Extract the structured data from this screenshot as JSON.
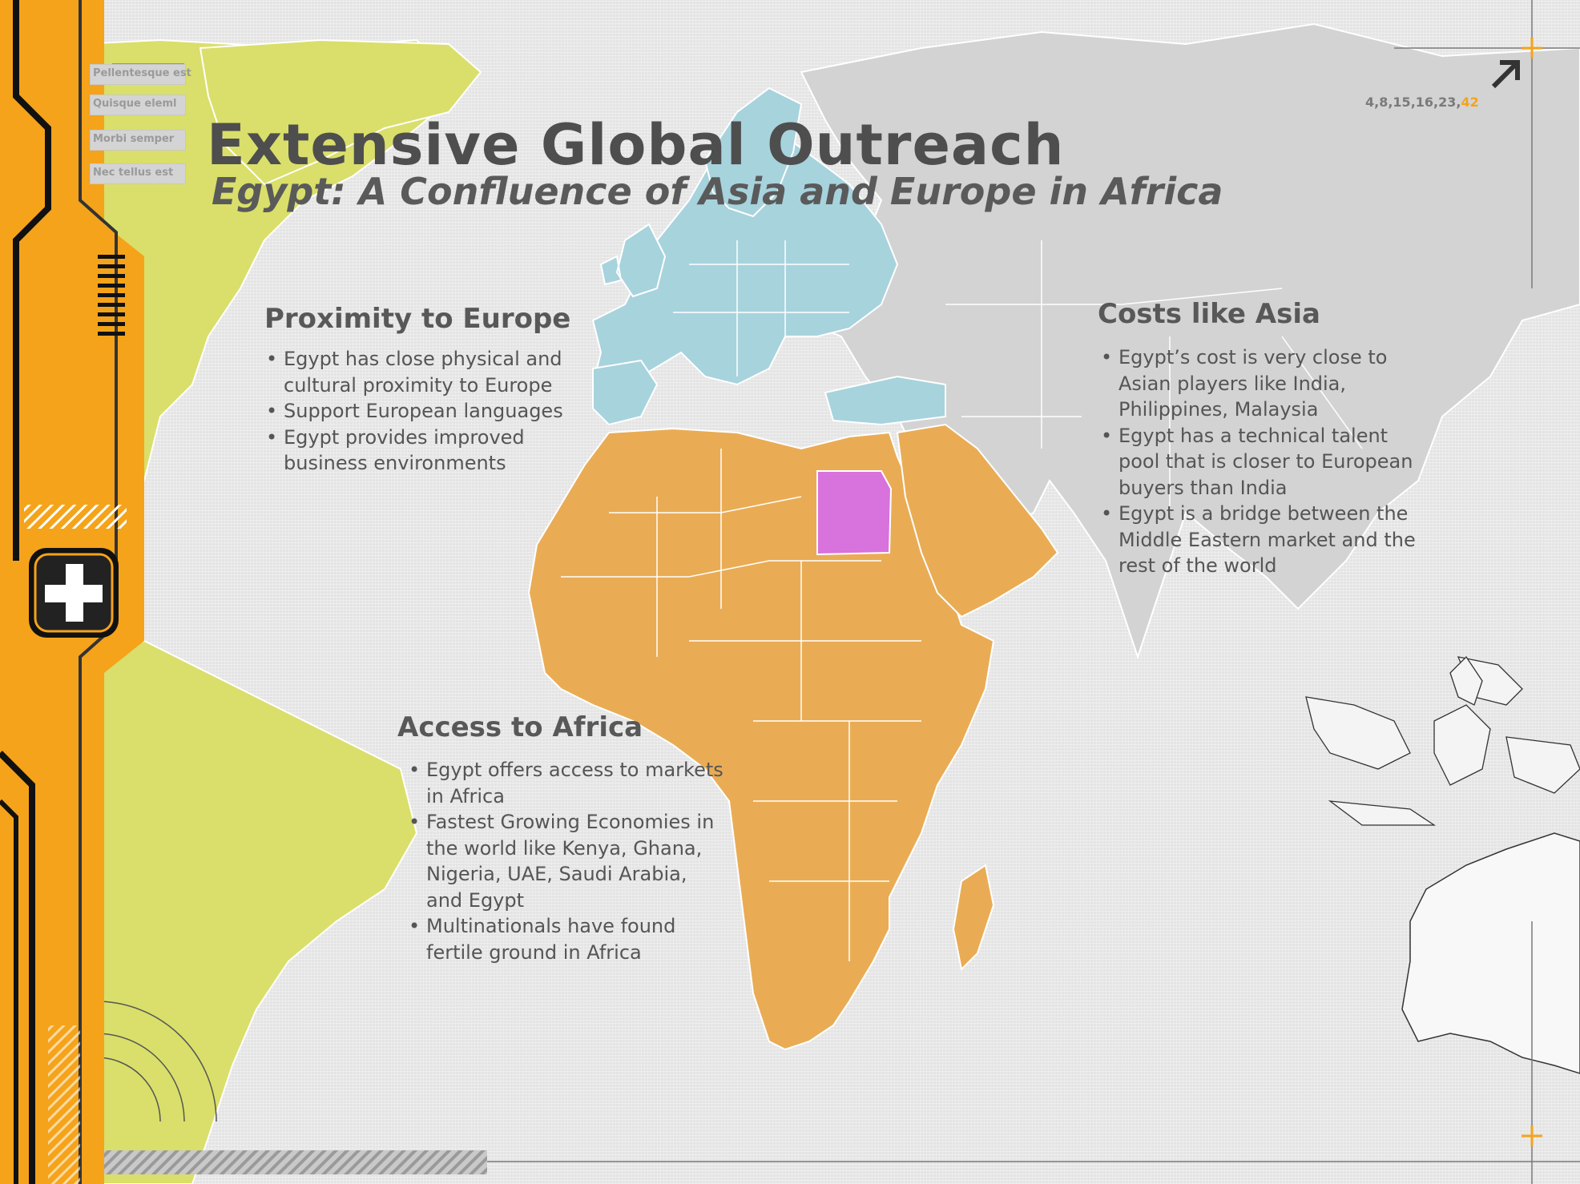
{
  "header": {
    "title": "Extensive Global Outreach",
    "subtitle": "Egypt: A Confluence of Asia and Europe in Africa"
  },
  "page_code": {
    "numbers": "4,8,15,16,23,",
    "highlight": "42"
  },
  "side_menu": {
    "items": [
      {
        "label": "Pellentesque est"
      },
      {
        "label": "Quisque eleml"
      },
      {
        "label": "Morbi semper"
      },
      {
        "label": "Nec tellus est"
      }
    ]
  },
  "sections": {
    "europe": {
      "heading": "Proximity to Europe",
      "bullets": [
        "Egypt has close physical and cultural proximity to Europe",
        "Support European languages",
        "Egypt provides improved business environments"
      ]
    },
    "asia": {
      "heading": "Costs like Asia",
      "bullets": [
        "Egypt’s cost is very close to Asian players like India, Philippines, Malaysia",
        "Egypt has a technical talent pool that is closer to European buyers than India",
        "Egypt is a bridge between the Middle Eastern market and the rest of the world"
      ]
    },
    "africa": {
      "heading": "Access to Africa",
      "bullets": [
        "Egypt offers access to markets in Africa",
        "Fastest Growing Economies in the world like Kenya, Ghana, Nigeria, UAE, Saudi Arabia, and Egypt",
        "Multinationals have found fertile ground in Africa"
      ]
    }
  },
  "icons": {
    "arrow": "arrow-up-right-icon",
    "add": "plus-icon",
    "crosshair": "crosshair-icon"
  },
  "colors": {
    "accent_orange": "#f5a31a",
    "americas_green": "#d9df6a",
    "europe_blue": "#a7d3dd",
    "africa_orange": "#e9ac55",
    "egypt_purple": "#d872dc",
    "world_gray": "#d2d2d2"
  }
}
